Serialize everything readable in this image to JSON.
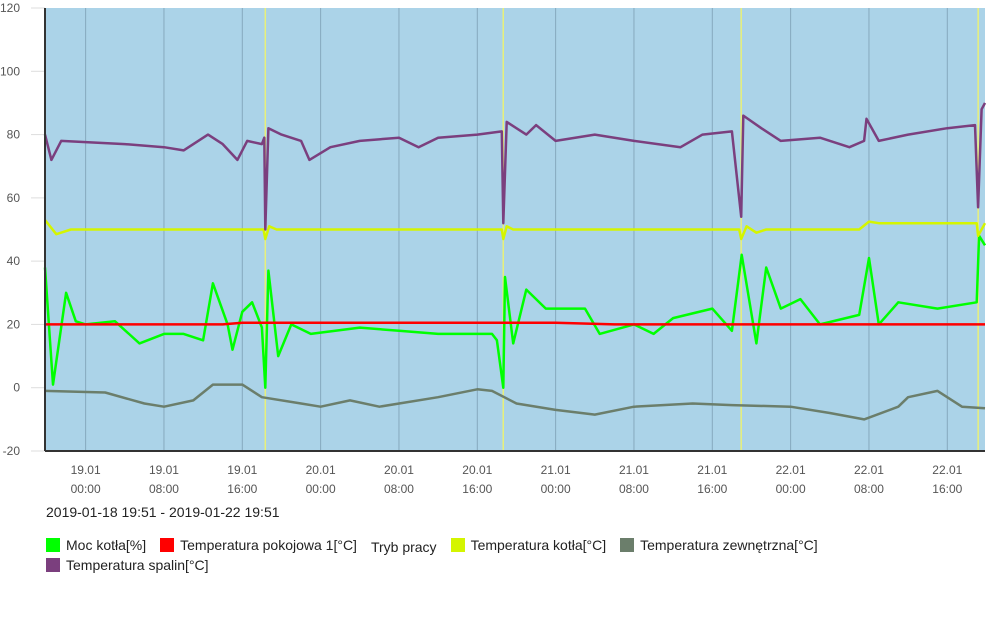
{
  "chart_data": {
    "type": "line",
    "title": "",
    "xlabel": "",
    "ylabel": "",
    "ylim": [
      -20,
      120
    ],
    "yticks": [
      -20,
      0,
      20,
      40,
      60,
      80,
      100,
      120
    ],
    "xlim": [
      "2019-01-18T19:51",
      "2019-01-22T19:51"
    ],
    "xticks": [
      {
        "t": "2019-01-19T00:00",
        "label": [
          "19.01",
          "00:00"
        ]
      },
      {
        "t": "2019-01-19T08:00",
        "label": [
          "19.01",
          "08:00"
        ]
      },
      {
        "t": "2019-01-19T16:00",
        "label": [
          "19.01",
          "16:00"
        ]
      },
      {
        "t": "2019-01-20T00:00",
        "label": [
          "20.01",
          "00:00"
        ]
      },
      {
        "t": "2019-01-20T08:00",
        "label": [
          "20.01",
          "08:00"
        ]
      },
      {
        "t": "2019-01-20T16:00",
        "label": [
          "20.01",
          "16:00"
        ]
      },
      {
        "t": "2019-01-21T00:00",
        "label": [
          "21.01",
          "00:00"
        ]
      },
      {
        "t": "2019-01-21T08:00",
        "label": [
          "21.01",
          "08:00"
        ]
      },
      {
        "t": "2019-01-21T16:00",
        "label": [
          "21.01",
          "16:00"
        ]
      },
      {
        "t": "2019-01-22T00:00",
        "label": [
          "22.01",
          "00:00"
        ]
      },
      {
        "t": "2019-01-22T08:00",
        "label": [
          "22.01",
          "08:00"
        ]
      },
      {
        "t": "2019-01-22T16:00",
        "label": [
          "22.01",
          "16:00"
        ]
      }
    ],
    "grid": "vertical",
    "background": "#abd3e8",
    "range_label": "2019-01-18 19:51 - 2019-01-22 19:51",
    "legend_position": "bottom",
    "series": [
      {
        "name": "Moc kotła[%]",
        "color": "#00ff00",
        "points": [
          [
            "2019-01-18T19:51",
            38
          ],
          [
            "2019-01-18T20:40",
            1
          ],
          [
            "2019-01-18T22:00",
            30
          ],
          [
            "2019-01-18T23:00",
            21
          ],
          [
            "2019-01-19T00:00",
            20
          ],
          [
            "2019-01-19T03:00",
            21
          ],
          [
            "2019-01-19T05:30",
            14
          ],
          [
            "2019-01-19T08:00",
            17
          ],
          [
            "2019-01-19T10:00",
            17
          ],
          [
            "2019-01-19T12:00",
            15
          ],
          [
            "2019-01-19T13:00",
            33
          ],
          [
            "2019-01-19T14:30",
            20
          ],
          [
            "2019-01-19T15:00",
            12
          ],
          [
            "2019-01-19T16:00",
            24
          ],
          [
            "2019-01-19T17:00",
            27
          ],
          [
            "2019-01-19T18:00",
            19
          ],
          [
            "2019-01-19T18:21",
            0
          ],
          [
            "2019-01-19T18:40",
            37
          ],
          [
            "2019-01-19T19:40",
            10
          ],
          [
            "2019-01-19T21:00",
            20
          ],
          [
            "2019-01-19T23:00",
            17
          ],
          [
            "2019-01-20T04:00",
            19
          ],
          [
            "2019-01-20T08:00",
            18
          ],
          [
            "2019-01-20T12:00",
            17
          ],
          [
            "2019-01-20T17:30",
            17
          ],
          [
            "2019-01-20T18:00",
            15
          ],
          [
            "2019-01-20T18:39",
            0
          ],
          [
            "2019-01-20T18:50",
            35
          ],
          [
            "2019-01-20T19:40",
            14
          ],
          [
            "2019-01-20T21:00",
            31
          ],
          [
            "2019-01-20T23:00",
            25
          ],
          [
            "2019-01-21T03:00",
            25
          ],
          [
            "2019-01-21T04:30",
            17
          ],
          [
            "2019-01-21T08:00",
            20
          ],
          [
            "2019-01-21T10:00",
            17
          ],
          [
            "2019-01-21T12:00",
            22
          ],
          [
            "2019-01-21T16:00",
            25
          ],
          [
            "2019-01-21T18:00",
            18
          ],
          [
            "2019-01-21T19:00",
            42
          ],
          [
            "2019-01-21T20:30",
            14
          ],
          [
            "2019-01-21T21:30",
            38
          ],
          [
            "2019-01-21T23:00",
            25
          ],
          [
            "2019-01-22T01:00",
            28
          ],
          [
            "2019-01-22T03:00",
            20
          ],
          [
            "2019-01-22T07:00",
            23
          ],
          [
            "2019-01-22T08:00",
            41
          ],
          [
            "2019-01-22T09:00",
            20
          ],
          [
            "2019-01-22T11:00",
            27
          ],
          [
            "2019-01-22T15:00",
            25
          ],
          [
            "2019-01-22T19:00",
            27
          ],
          [
            "2019-01-22T19:15",
            48
          ],
          [
            "2019-01-22T19:51",
            45
          ]
        ]
      },
      {
        "name": "Temperatura pokojowa 1[°C]",
        "color": "#ff0000",
        "points": [
          [
            "2019-01-18T19:51",
            20
          ],
          [
            "2019-01-19T14:00",
            20
          ],
          [
            "2019-01-19T16:00",
            20.5
          ],
          [
            "2019-01-21T00:00",
            20.5
          ],
          [
            "2019-01-21T06:00",
            20
          ],
          [
            "2019-01-22T19:51",
            20
          ]
        ]
      },
      {
        "name": "Tryb pracy",
        "color": "#e8f07a",
        "markers": [
          "2019-01-19T18:21",
          "2019-01-20T18:39",
          "2019-01-21T18:57",
          "2019-01-22T19:09"
        ]
      },
      {
        "name": "Temperatura kotła[°C]",
        "color": "#d4f500",
        "points": [
          [
            "2019-01-18T19:51",
            53
          ],
          [
            "2019-01-18T21:00",
            48.5
          ],
          [
            "2019-01-18T22:30",
            50
          ],
          [
            "2019-01-19T18:10",
            50
          ],
          [
            "2019-01-19T18:21",
            47
          ],
          [
            "2019-01-19T18:45",
            51
          ],
          [
            "2019-01-19T19:30",
            50
          ],
          [
            "2019-01-20T18:30",
            50
          ],
          [
            "2019-01-20T18:39",
            47
          ],
          [
            "2019-01-20T19:00",
            51
          ],
          [
            "2019-01-20T19:40",
            50
          ],
          [
            "2019-01-21T18:45",
            50
          ],
          [
            "2019-01-21T18:57",
            47
          ],
          [
            "2019-01-21T19:30",
            51
          ],
          [
            "2019-01-21T20:30",
            49
          ],
          [
            "2019-01-21T21:30",
            50
          ],
          [
            "2019-01-22T07:00",
            50
          ],
          [
            "2019-01-22T08:00",
            52.5
          ],
          [
            "2019-01-22T09:00",
            52
          ],
          [
            "2019-01-22T19:00",
            52
          ],
          [
            "2019-01-22T19:09",
            48
          ],
          [
            "2019-01-22T19:51",
            52
          ]
        ]
      },
      {
        "name": "Temperatura zewnętrzna[°C]",
        "color": "#6b7e6b",
        "points": [
          [
            "2019-01-18T19:51",
            -1
          ],
          [
            "2019-01-19T02:00",
            -1.5
          ],
          [
            "2019-01-19T06:00",
            -5
          ],
          [
            "2019-01-19T08:00",
            -6
          ],
          [
            "2019-01-19T11:00",
            -4
          ],
          [
            "2019-01-19T13:00",
            1
          ],
          [
            "2019-01-19T16:00",
            1
          ],
          [
            "2019-01-19T18:00",
            -3
          ],
          [
            "2019-01-19T22:00",
            -5
          ],
          [
            "2019-01-20T00:00",
            -6
          ],
          [
            "2019-01-20T03:00",
            -4
          ],
          [
            "2019-01-20T06:00",
            -6
          ],
          [
            "2019-01-20T12:00",
            -3
          ],
          [
            "2019-01-20T16:00",
            -0.5
          ],
          [
            "2019-01-20T17:30",
            -1
          ],
          [
            "2019-01-20T20:00",
            -5
          ],
          [
            "2019-01-21T00:00",
            -7
          ],
          [
            "2019-01-21T04:00",
            -8.5
          ],
          [
            "2019-01-21T08:00",
            -6
          ],
          [
            "2019-01-21T14:00",
            -5
          ],
          [
            "2019-01-21T18:00",
            -5.5
          ],
          [
            "2019-01-22T00:00",
            -6
          ],
          [
            "2019-01-22T04:00",
            -8
          ],
          [
            "2019-01-22T07:30",
            -10
          ],
          [
            "2019-01-22T11:00",
            -6
          ],
          [
            "2019-01-22T12:00",
            -3
          ],
          [
            "2019-01-22T15:00",
            -1
          ],
          [
            "2019-01-22T17:30",
            -6
          ],
          [
            "2019-01-22T19:51",
            -6.5
          ]
        ]
      },
      {
        "name": "Temperatura spalin[°C]",
        "color": "#7b3f7e",
        "points": [
          [
            "2019-01-18T19:51",
            80
          ],
          [
            "2019-01-18T20:30",
            72
          ],
          [
            "2019-01-18T21:30",
            78
          ],
          [
            "2019-01-19T04:00",
            77
          ],
          [
            "2019-01-19T08:00",
            76
          ],
          [
            "2019-01-19T10:00",
            75
          ],
          [
            "2019-01-19T12:30",
            80
          ],
          [
            "2019-01-19T14:00",
            77
          ],
          [
            "2019-01-19T15:30",
            72
          ],
          [
            "2019-01-19T16:30",
            78
          ],
          [
            "2019-01-19T18:00",
            77
          ],
          [
            "2019-01-19T18:15",
            79
          ],
          [
            "2019-01-19T18:21",
            50
          ],
          [
            "2019-01-19T18:40",
            82
          ],
          [
            "2019-01-19T20:00",
            80
          ],
          [
            "2019-01-19T22:00",
            78
          ],
          [
            "2019-01-19T22:51",
            72
          ],
          [
            "2019-01-20T01:00",
            76
          ],
          [
            "2019-01-20T04:00",
            78
          ],
          [
            "2019-01-20T08:00",
            79
          ],
          [
            "2019-01-20T10:00",
            76
          ],
          [
            "2019-01-20T12:00",
            79
          ],
          [
            "2019-01-20T16:00",
            80
          ],
          [
            "2019-01-20T18:30",
            81
          ],
          [
            "2019-01-20T18:39",
            52
          ],
          [
            "2019-01-20T19:00",
            84
          ],
          [
            "2019-01-20T21:00",
            80
          ],
          [
            "2019-01-20T22:00",
            83
          ],
          [
            "2019-01-21T00:00",
            78
          ],
          [
            "2019-01-21T04:00",
            80
          ],
          [
            "2019-01-21T08:00",
            78
          ],
          [
            "2019-01-21T12:45",
            76
          ],
          [
            "2019-01-21T15:00",
            80
          ],
          [
            "2019-01-21T18:00",
            81
          ],
          [
            "2019-01-21T18:57",
            54
          ],
          [
            "2019-01-21T19:10",
            86
          ],
          [
            "2019-01-21T21:00",
            82
          ],
          [
            "2019-01-21T23:00",
            78
          ],
          [
            "2019-01-22T03:00",
            79
          ],
          [
            "2019-01-22T06:00",
            76
          ],
          [
            "2019-01-22T07:30",
            78
          ],
          [
            "2019-01-22T07:45",
            85
          ],
          [
            "2019-01-22T09:00",
            78
          ],
          [
            "2019-01-22T12:00",
            80
          ],
          [
            "2019-01-22T16:00",
            82
          ],
          [
            "2019-01-22T18:50",
            83
          ],
          [
            "2019-01-22T19:09",
            57
          ],
          [
            "2019-01-22T19:30",
            88
          ],
          [
            "2019-01-22T19:51",
            90
          ]
        ]
      }
    ]
  }
}
